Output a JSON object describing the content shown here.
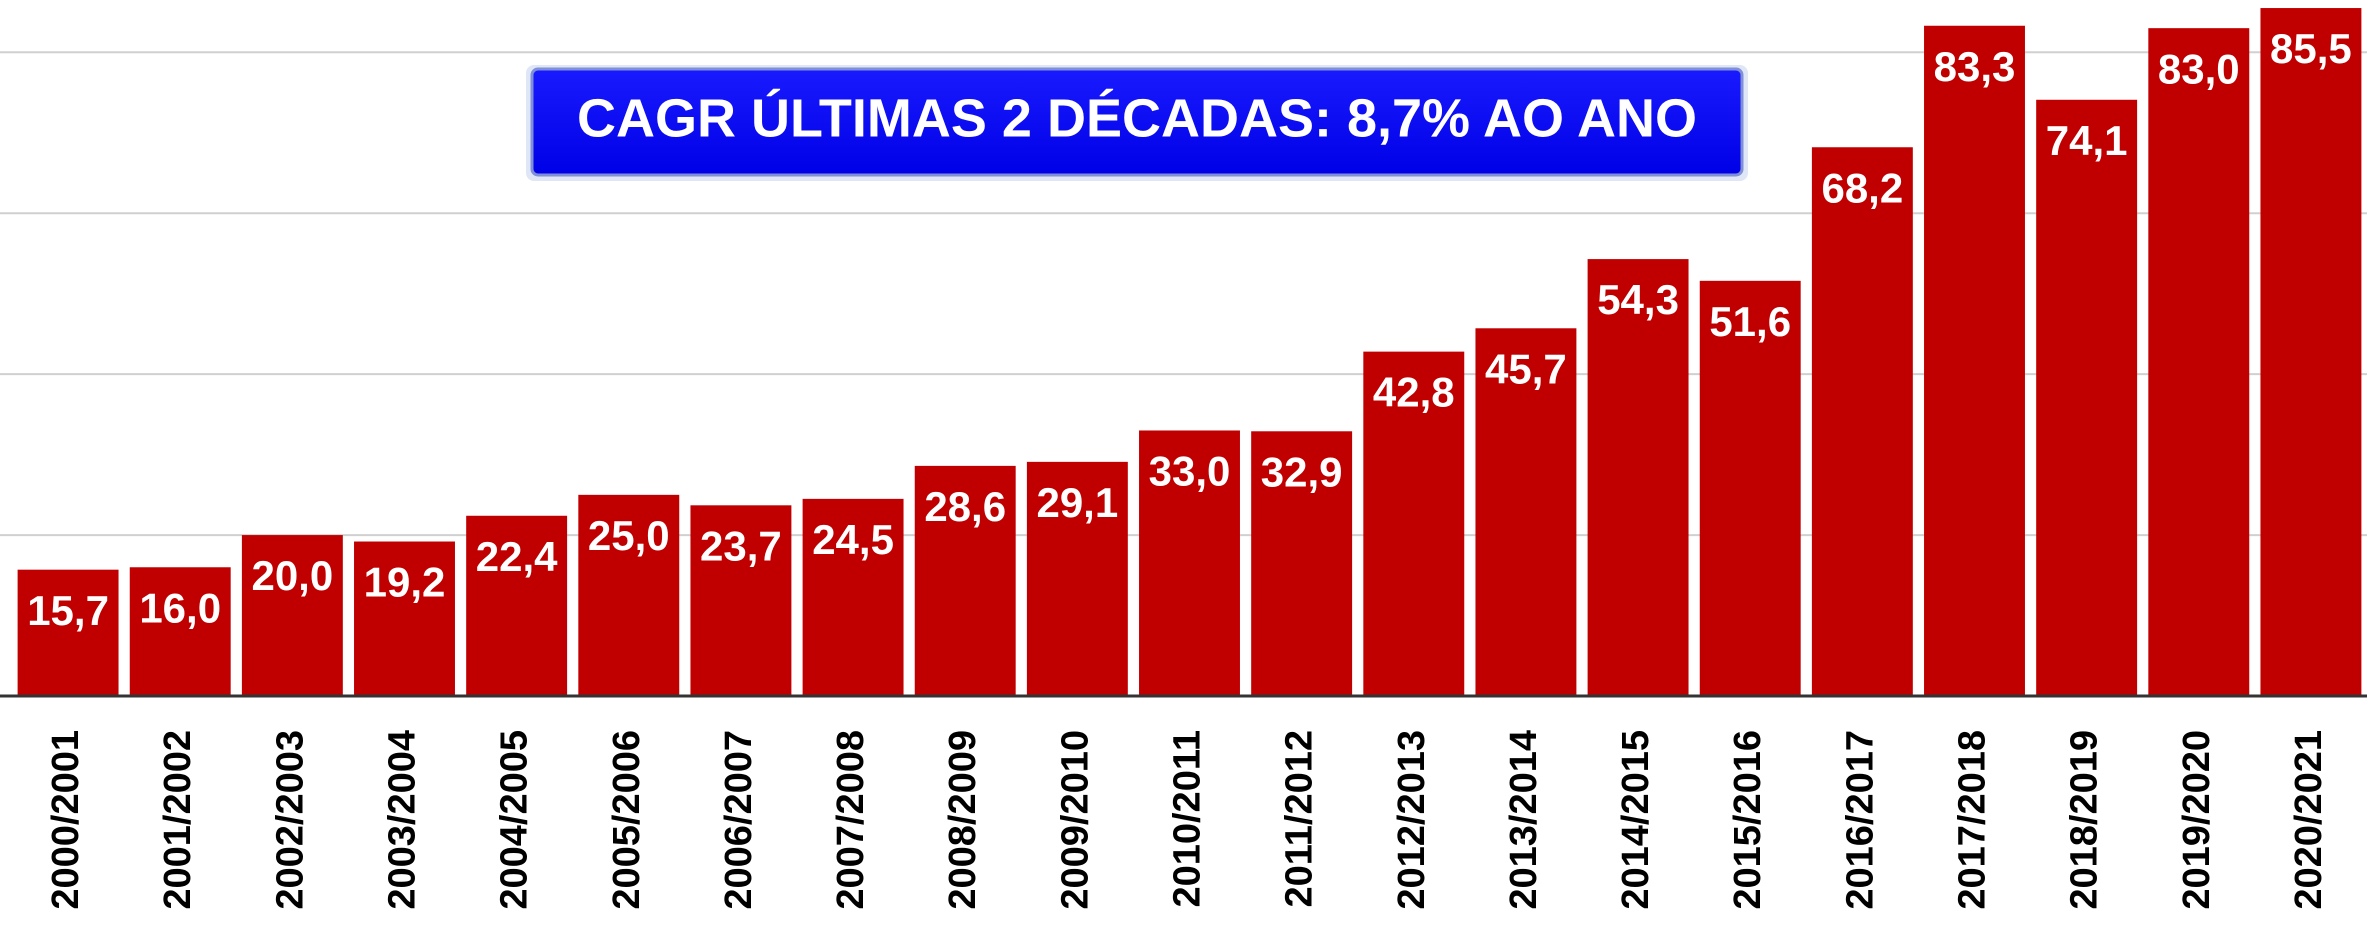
{
  "chart_data": {
    "type": "bar",
    "annotation": "CAGR ÚLTIMAS 2 DÉCADAS: 8,7% AO ANO",
    "categories": [
      "2000/2001",
      "2001/2002",
      "2002/2003",
      "2003/2004",
      "2004/2005",
      "2005/2006",
      "2006/2007",
      "2007/2008",
      "2008/2009",
      "2009/2010",
      "2010/2011",
      "2011/2012",
      "2012/2013",
      "2013/2014",
      "2014/2015",
      "2015/2016",
      "2016/2017",
      "2017/2018",
      "2018/2019",
      "2019/2020",
      "2020/2021"
    ],
    "values": [
      15.7,
      16.0,
      20.0,
      19.2,
      22.4,
      25.0,
      23.7,
      24.5,
      28.6,
      29.1,
      33.0,
      32.9,
      42.8,
      45.7,
      54.3,
      51.6,
      68.2,
      83.3,
      74.1,
      83.0,
      85.5
    ],
    "value_labels": [
      "15,7",
      "16,0",
      "20,0",
      "19,2",
      "22,4",
      "25,0",
      "23,7",
      "24,5",
      "28,6",
      "29,1",
      "33,0",
      "32,9",
      "42,8",
      "45,7",
      "54,3",
      "51,6",
      "68,2",
      "83,3",
      "74,1",
      "83,0",
      "85,5"
    ],
    "color": "#c00000",
    "ylim": [
      0,
      86.5
    ],
    "yticks": [
      0,
      20,
      40,
      60,
      80
    ],
    "grid": true
  }
}
